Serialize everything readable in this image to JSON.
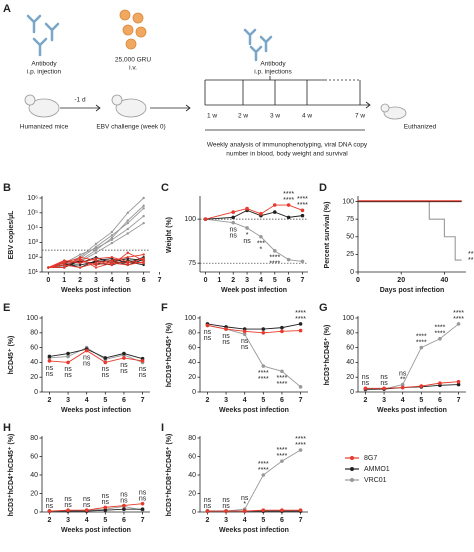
{
  "schematic": {
    "panel": "A",
    "antibody": [
      "Antibody",
      "i.p. injection"
    ],
    "virus": [
      "25,000 GRU",
      "i.v."
    ],
    "antibodies": [
      "Antibody",
      "i.p. injections"
    ],
    "offset": "-1 d",
    "mice": "Humanized mice",
    "challenge": "EBV challenge (week 0)",
    "timepoints": [
      "1 w",
      "2 w",
      "3 w",
      "4 w",
      "7 w"
    ],
    "end": "Euthanized",
    "analysis": [
      "Weekly analysis of immunophenotyping, viral DNA copy",
      "number in blood, body weight and survival"
    ]
  },
  "legend": [
    {
      "name": "8G7",
      "color": "#e8392b"
    },
    {
      "name": "AMMO1",
      "color": "#222222"
    },
    {
      "name": "VRC01",
      "color": "#999999"
    }
  ],
  "chart_data": [
    {
      "type": "line",
      "panel": "B",
      "y_label": "EBV copies/µL",
      "x_label": "Weeks post infection",
      "log_y": true,
      "x": [
        0,
        1,
        2,
        3,
        4,
        5,
        6
      ],
      "xlim": [
        -0.4,
        6.4
      ],
      "xticks": [
        0,
        1,
        2,
        3,
        4,
        5,
        6,
        7
      ],
      "ylim": [
        10,
        1000000
      ],
      "yticks": [
        {
          "value": 10,
          "label": "10¹"
        },
        {
          "value": 100,
          "label": "10²"
        },
        {
          "value": 1000,
          "label": "10³"
        },
        {
          "value": 10000,
          "label": "10⁴"
        },
        {
          "value": 100000,
          "label": "10⁵"
        },
        {
          "value": 1000000,
          "label": "10⁶"
        }
      ],
      "hlines": [
        300
      ],
      "series": [
        {
          "color": "#999999",
          "values": [
            [
              20,
              40,
              100,
              800,
              5000,
              100000,
              1000000
            ],
            [
              20,
              30,
              60,
              300,
              2000,
              30000,
              300000
            ],
            [
              20,
              20,
              80,
              500,
              3000,
              20000,
              200000
            ],
            [
              20,
              40,
              150,
              400,
              1500,
              8000,
              60000
            ],
            [
              20,
              25,
              50,
              200,
              900,
              4000,
              20000
            ]
          ]
        },
        {
          "color": "#222222",
          "values": [
            [
              20,
              30,
              50,
              40,
              30,
              60,
              40
            ],
            [
              20,
              40,
              20,
              60,
              80,
              40,
              100
            ],
            [
              20,
              20,
              60,
              30,
              50,
              80,
              60
            ],
            [
              20,
              50,
              40,
              100,
              40,
              50,
              30
            ],
            [
              20,
              30,
              30,
              50,
              60,
              30,
              70
            ]
          ]
        },
        {
          "color": "#e8392b",
          "values": [
            [
              20,
              40,
              60,
              30,
              50,
              40,
              80
            ],
            [
              20,
              20,
              100,
              60,
              30,
              200,
              60
            ],
            [
              20,
              60,
              40,
              80,
              100,
              50,
              40
            ],
            [
              20,
              30,
              20,
              40,
              60,
              100,
              150
            ],
            [
              20,
              50,
              80,
              20,
              40,
              30,
              50
            ]
          ]
        }
      ]
    },
    {
      "type": "line",
      "panel": "C",
      "y_label": "Weight (%)",
      "x_label": "Week post infection",
      "x": [
        0,
        2,
        3,
        4,
        5,
        6,
        7
      ],
      "xlim": [
        -0.4,
        7.4
      ],
      "xticks": [
        0,
        1,
        2,
        3,
        4,
        5,
        6,
        7
      ],
      "ylim": [
        70,
        112
      ],
      "yticks": [
        75,
        100
      ],
      "hlines": [
        100,
        75
      ],
      "series": [
        {
          "color": "#999999",
          "values": [
            100,
            98,
            95,
            90,
            82,
            77,
            76
          ]
        },
        {
          "color": "#222222",
          "values": [
            100,
            101,
            105,
            102,
            104,
            101,
            102
          ]
        },
        {
          "color": "#e8392b",
          "values": [
            100,
            104,
            106,
            103,
            108,
            108,
            105
          ]
        }
      ],
      "significance": [
        {
          "color": "#e8392b",
          "labels": [
            null,
            "ns",
            "*",
            "***",
            "****",
            "****",
            "****"
          ]
        },
        {
          "color": "#222222",
          "labels": [
            null,
            "ns",
            "ns",
            "*",
            "****",
            "****",
            "****"
          ]
        }
      ]
    },
    {
      "type": "line",
      "panel": "D",
      "y_label": "Percent survival (%)",
      "x_label": "Days post infection",
      "step": true,
      "xlim": [
        0,
        50
      ],
      "xticks": [
        0,
        20,
        40
      ],
      "ylim": [
        0,
        105
      ],
      "yticks": [
        0,
        25,
        50,
        75,
        100
      ],
      "series": [
        {
          "color": "#999999",
          "x": [
            0,
            33,
            40,
            45,
            48
          ],
          "values": [
            100,
            75,
            50,
            17,
            17
          ]
        },
        {
          "color": "#222222",
          "x": [
            0,
            48
          ],
          "values": [
            100,
            100
          ]
        },
        {
          "color": "#e8392b",
          "x": [
            0,
            48
          ],
          "values": [
            101,
            101
          ]
        }
      ],
      "significance": [
        {
          "color": "#e8392b",
          "labels": [
            "***"
          ]
        },
        {
          "color": "#222222",
          "labels": [
            "**"
          ]
        }
      ]
    },
    {
      "type": "line",
      "panel": "E",
      "y_label": "hCD45⁺ (%)",
      "x_label": "Weeks post infection",
      "x": [
        2,
        3,
        4,
        5,
        6,
        7
      ],
      "xlim": [
        1.6,
        7.4
      ],
      "xticks": [
        2,
        3,
        4,
        5,
        6,
        7
      ],
      "ylim": [
        0,
        100
      ],
      "yticks": [
        0,
        20,
        40,
        60,
        80,
        100
      ],
      "series": [
        {
          "color": "#999999",
          "values": [
            46,
            48,
            60,
            44,
            50,
            40
          ]
        },
        {
          "color": "#222222",
          "values": [
            48,
            52,
            58,
            46,
            52,
            45
          ]
        },
        {
          "color": "#e8392b",
          "values": [
            42,
            40,
            56,
            40,
            46,
            42
          ]
        }
      ],
      "significance": [
        {
          "color": "#e8392b",
          "labels": [
            "ns",
            "ns",
            "ns",
            "ns",
            "ns",
            "ns"
          ]
        },
        {
          "color": "#222222",
          "labels": [
            "ns",
            "ns",
            "ns",
            "ns",
            "ns",
            "ns"
          ]
        }
      ]
    },
    {
      "type": "line",
      "panel": "F",
      "y_label": "hCD19⁺hCD45⁺ (%)",
      "x_label": "Weeks post infection",
      "x": [
        2,
        3,
        4,
        5,
        6,
        7
      ],
      "xlim": [
        1.6,
        7.4
      ],
      "xticks": [
        2,
        3,
        4,
        5,
        6,
        7
      ],
      "ylim": [
        0,
        100
      ],
      "yticks": [
        0,
        20,
        40,
        60,
        80,
        100
      ],
      "series": [
        {
          "color": "#999999",
          "values": [
            90,
            85,
            78,
            35,
            28,
            7
          ]
        },
        {
          "color": "#222222",
          "values": [
            92,
            88,
            85,
            85,
            87,
            92
          ]
        },
        {
          "color": "#e8392b",
          "values": [
            90,
            85,
            82,
            80,
            82,
            83
          ]
        }
      ],
      "significance": [
        {
          "color": "#e8392b",
          "labels": [
            "ns",
            "ns",
            "ns",
            "****",
            "****",
            "****"
          ]
        },
        {
          "color": "#222222",
          "labels": [
            "ns",
            "ns",
            "ns",
            "****",
            "****",
            "****"
          ]
        }
      ]
    },
    {
      "type": "line",
      "panel": "G",
      "y_label": "hCD3⁺hCD45⁺ (%)",
      "x_label": "Weeks post infection",
      "x": [
        2,
        3,
        4,
        5,
        6,
        7
      ],
      "xlim": [
        1.6,
        7.4
      ],
      "xticks": [
        2,
        3,
        4,
        5,
        6,
        7
      ],
      "ylim": [
        0,
        100
      ],
      "yticks": [
        0,
        20,
        40,
        60,
        80,
        100
      ],
      "series": [
        {
          "color": "#999999",
          "values": [
            3,
            4,
            10,
            60,
            72,
            92
          ]
        },
        {
          "color": "#222222",
          "values": [
            4,
            4,
            6,
            7,
            9,
            10
          ]
        },
        {
          "color": "#e8392b",
          "values": [
            5,
            5,
            6,
            8,
            12,
            14
          ]
        }
      ],
      "significance": [
        {
          "color": "#e8392b",
          "labels": [
            "ns",
            "ns",
            "ns",
            "****",
            "****",
            "****"
          ]
        },
        {
          "color": "#222222",
          "labels": [
            "ns",
            "ns",
            "**",
            "****",
            "****",
            "****"
          ]
        }
      ]
    },
    {
      "type": "line",
      "panel": "H",
      "y_label": "hCD3⁺hCD4⁺hCD45⁺ (%)",
      "x_label": "Weeks post infection",
      "x": [
        2,
        3,
        4,
        5,
        6,
        7
      ],
      "xlim": [
        1.6,
        7.4
      ],
      "xticks": [
        2,
        3,
        4,
        5,
        6,
        7
      ],
      "ylim": [
        0,
        80
      ],
      "yticks": [
        0,
        20,
        40,
        60,
        80
      ],
      "series": [
        {
          "color": "#999999",
          "values": [
            1,
            1,
            2,
            3,
            6,
            2
          ]
        },
        {
          "color": "#222222",
          "values": [
            1,
            1,
            1,
            2,
            3,
            3
          ]
        },
        {
          "color": "#e8392b",
          "values": [
            1,
            2,
            2,
            5,
            7,
            9
          ]
        }
      ],
      "significance": [
        {
          "color": "#e8392b",
          "labels": [
            "ns",
            "ns",
            "ns",
            "ns",
            "ns",
            "ns"
          ]
        },
        {
          "color": "#222222",
          "labels": [
            "ns",
            "ns",
            "ns",
            "ns",
            "ns",
            "ns"
          ]
        }
      ]
    },
    {
      "type": "line",
      "panel": "I",
      "y_label": "hCD3⁺hCD8⁺hCD45⁺ (%)",
      "x_label": "Weeks post infection",
      "x": [
        2,
        3,
        4,
        5,
        6,
        7
      ],
      "xlim": [
        1.6,
        7.4
      ],
      "xticks": [
        2,
        3,
        4,
        5,
        6,
        7
      ],
      "ylim": [
        0,
        80
      ],
      "yticks": [
        0,
        20,
        40,
        60,
        80
      ],
      "series": [
        {
          "color": "#999999",
          "values": [
            1,
            1,
            3,
            40,
            55,
            67
          ]
        },
        {
          "color": "#222222",
          "values": [
            1,
            1,
            1,
            1,
            1,
            1
          ]
        },
        {
          "color": "#e8392b",
          "values": [
            1,
            1,
            1,
            2,
            2,
            2
          ]
        }
      ],
      "significance": [
        {
          "color": "#e8392b",
          "labels": [
            "ns",
            "ns",
            "ns",
            "****",
            "****",
            "****"
          ]
        },
        {
          "color": "#222222",
          "labels": [
            "ns",
            "ns",
            "*",
            "****",
            "****",
            "****"
          ]
        }
      ]
    }
  ]
}
